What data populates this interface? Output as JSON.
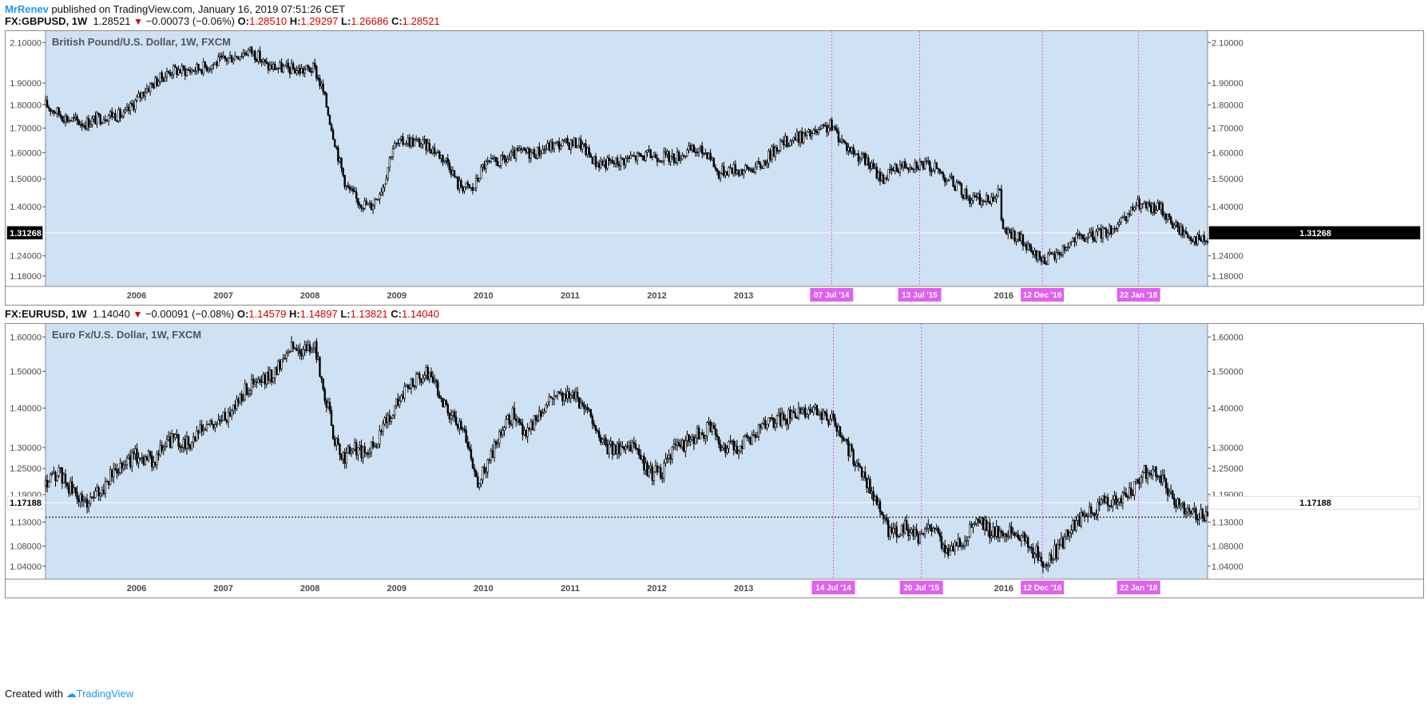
{
  "header": {
    "author": "MrRenev",
    "published": "published on TradingView.com, January 16, 2019 07:51:26 CET"
  },
  "footer": {
    "created_with": "Created with",
    "brand": "TradingView"
  },
  "colors": {
    "plot_bg": "#cfe2f3",
    "candle": "#000000",
    "marker_line": "#e05cf0",
    "marker_tag": "#e060f0",
    "price_down": "#d50000",
    "brand": "#2196f3"
  },
  "chart_data": [
    {
      "type": "candlestick",
      "symbol": "FX:GBPUSD",
      "interval": "1W",
      "title": "British Pound/U.S. Dollar, 1W, FXCM",
      "quote": {
        "last": "1.28521",
        "change": "−0.00073 (−0.06%)",
        "open_label": "O:",
        "open": "1.28510",
        "high_label": "H:",
        "high": "1.29297",
        "low_label": "L:",
        "low": "1.26686",
        "close_label": "C:",
        "close": "1.28521"
      },
      "current_price": "1.31268",
      "y_scale": "log",
      "ylim": [
        1.15,
        2.16
      ],
      "y_ticks": [
        "2.10000",
        "1.90000",
        "1.80000",
        "1.70000",
        "1.60000",
        "1.50000",
        "1.40000",
        "1.24000",
        "1.18000"
      ],
      "x_ticks": [
        "2006",
        "2007",
        "2008",
        "2009",
        "2010",
        "2011",
        "2012",
        "2013",
        "2014",
        "2015",
        "2016"
      ],
      "x_range": [
        2005.45,
        2018.85
      ],
      "vertical_markers": [
        {
          "label": "07 Jul '14",
          "x": 2014.515
        },
        {
          "label": "13 Jul '15",
          "x": 2015.53
        },
        {
          "label": "12 Dec '16",
          "x": 2016.945
        },
        {
          "label": "22 Jan '18",
          "x": 2018.055
        }
      ],
      "series": [
        {
          "x": [
            2005.45,
            2005.7,
            2005.9,
            2006.2,
            2006.35,
            2006.6,
            2006.9,
            2007.1,
            2007.3,
            2007.5,
            2007.8,
            2007.9,
            2008.0,
            2008.2,
            2008.4,
            2008.55,
            2008.65,
            2008.75,
            2008.85,
            2008.92,
            2009.05,
            2009.2,
            2009.35,
            2009.45,
            2009.6,
            2009.75,
            2009.9,
            2010.1,
            2010.2,
            2010.38,
            2010.5,
            2010.75,
            2010.9,
            2011.1,
            2011.3,
            2011.6,
            2011.8,
            2012.0,
            2012.2,
            2012.45,
            2012.7,
            2012.9,
            2013.1,
            2013.2,
            2013.35,
            2013.5,
            2013.7,
            2013.9,
            2014.1,
            2014.35,
            2014.5,
            2014.7,
            2014.9,
            2015.1,
            2015.3,
            2015.5,
            2015.7,
            2015.9,
            2016.1,
            2016.3,
            2016.45,
            2016.48,
            2016.55,
            2016.7,
            2016.8,
            2016.95,
            2017.1,
            2017.3,
            2017.5,
            2017.7,
            2017.9,
            2018.0,
            2018.05,
            2018.2,
            2018.3,
            2018.45,
            2018.6,
            2018.75,
            2018.85
          ],
          "close": [
            1.8,
            1.74,
            1.72,
            1.76,
            1.75,
            1.87,
            1.96,
            1.96,
            1.98,
            2.01,
            2.06,
            2.03,
            1.98,
            1.97,
            1.96,
            1.97,
            1.86,
            1.7,
            1.55,
            1.47,
            1.42,
            1.4,
            1.48,
            1.62,
            1.65,
            1.64,
            1.62,
            1.56,
            1.48,
            1.46,
            1.55,
            1.57,
            1.6,
            1.6,
            1.63,
            1.64,
            1.56,
            1.56,
            1.58,
            1.59,
            1.58,
            1.61,
            1.6,
            1.52,
            1.54,
            1.53,
            1.55,
            1.63,
            1.66,
            1.68,
            1.71,
            1.62,
            1.57,
            1.5,
            1.55,
            1.56,
            1.54,
            1.49,
            1.43,
            1.42,
            1.46,
            1.33,
            1.31,
            1.29,
            1.25,
            1.23,
            1.24,
            1.29,
            1.3,
            1.32,
            1.35,
            1.4,
            1.41,
            1.39,
            1.4,
            1.34,
            1.31,
            1.29,
            1.285
          ]
        }
      ]
    },
    {
      "type": "candlestick",
      "symbol": "FX:EURUSD",
      "interval": "1W",
      "title": "Euro Fx/U.S. Dollar, 1W, FXCM",
      "quote": {
        "last": "1.14040",
        "change": "−0.00091 (−0.08%)",
        "open_label": "O:",
        "open": "1.14579",
        "high_label": "H:",
        "high": "1.14897",
        "low_label": "L:",
        "low": "1.13821",
        "close_label": "C:",
        "close": "1.14040"
      },
      "current_price": "1.17188",
      "reference_line": 1.1404,
      "y_scale": "log",
      "ylim": [
        1.015,
        1.64
      ],
      "y_ticks": [
        "1.60000",
        "1.50000",
        "1.40000",
        "1.30000",
        "1.25000",
        "1.19000",
        "1.13000",
        "1.08000",
        "1.04000"
      ],
      "x_ticks": [
        "2006",
        "2007",
        "2008",
        "2009",
        "2010",
        "2011",
        "2012",
        "2013",
        "2014",
        "2015",
        "2016"
      ],
      "x_range": [
        2005.45,
        2018.85
      ],
      "vertical_markers": [
        {
          "label": "14 Jul '14",
          "x": 2014.535
        },
        {
          "label": "20 Jul '15",
          "x": 2015.55
        },
        {
          "label": "12 Dec '16",
          "x": 2016.945
        },
        {
          "label": "22 Jan '18",
          "x": 2018.055
        }
      ],
      "series": [
        {
          "x": [
            2005.45,
            2005.6,
            2005.75,
            2005.9,
            2006.1,
            2006.3,
            2006.5,
            2006.7,
            2006.9,
            2007.1,
            2007.3,
            2007.5,
            2007.8,
            2007.95,
            2008.1,
            2008.25,
            2008.4,
            2008.55,
            2008.65,
            2008.75,
            2008.85,
            2009.0,
            2009.15,
            2009.3,
            2009.5,
            2009.7,
            2009.88,
            2010.0,
            2010.15,
            2010.3,
            2010.42,
            2010.55,
            2010.7,
            2010.85,
            2011.0,
            2011.1,
            2011.3,
            2011.45,
            2011.6,
            2011.75,
            2011.9,
            2012.05,
            2012.2,
            2012.4,
            2012.55,
            2012.7,
            2012.9,
            2013.1,
            2013.25,
            2013.45,
            2013.7,
            2013.95,
            2014.2,
            2014.35,
            2014.55,
            2014.7,
            2014.85,
            2014.98,
            2015.05,
            2015.2,
            2015.35,
            2015.5,
            2015.7,
            2015.85,
            2016.0,
            2016.2,
            2016.35,
            2016.5,
            2016.7,
            2016.85,
            2016.95,
            2017.1,
            2017.3,
            2017.5,
            2017.7,
            2017.9,
            2018.0,
            2018.1,
            2018.25,
            2018.35,
            2018.45,
            2018.6,
            2018.85
          ],
          "close": [
            1.21,
            1.24,
            1.2,
            1.17,
            1.2,
            1.26,
            1.28,
            1.27,
            1.32,
            1.31,
            1.35,
            1.37,
            1.46,
            1.47,
            1.5,
            1.57,
            1.56,
            1.57,
            1.46,
            1.35,
            1.27,
            1.3,
            1.28,
            1.33,
            1.42,
            1.47,
            1.5,
            1.43,
            1.37,
            1.33,
            1.22,
            1.26,
            1.33,
            1.39,
            1.33,
            1.37,
            1.44,
            1.44,
            1.42,
            1.38,
            1.3,
            1.3,
            1.31,
            1.24,
            1.24,
            1.29,
            1.32,
            1.35,
            1.3,
            1.3,
            1.35,
            1.37,
            1.39,
            1.39,
            1.37,
            1.3,
            1.25,
            1.2,
            1.16,
            1.1,
            1.12,
            1.1,
            1.12,
            1.07,
            1.09,
            1.13,
            1.11,
            1.11,
            1.1,
            1.07,
            1.05,
            1.07,
            1.12,
            1.15,
            1.18,
            1.18,
            1.2,
            1.24,
            1.24,
            1.22,
            1.17,
            1.16,
            1.14
          ]
        }
      ]
    }
  ]
}
